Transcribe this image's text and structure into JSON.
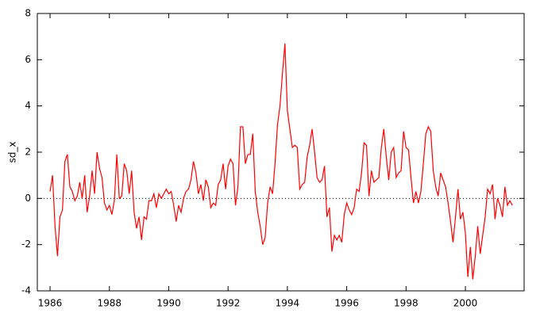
{
  "chart_data": {
    "type": "line",
    "ylabel": "sd_x",
    "x": [
      1986,
      1986.083,
      1986.167,
      1986.25,
      1986.333,
      1986.417,
      1986.5,
      1986.583,
      1986.667,
      1986.75,
      1986.833,
      1986.917,
      1987,
      1987.083,
      1987.167,
      1987.25,
      1987.333,
      1987.417,
      1987.5,
      1987.583,
      1987.667,
      1987.75,
      1987.833,
      1987.917,
      1988,
      1988.083,
      1988.167,
      1988.25,
      1988.333,
      1988.417,
      1988.5,
      1988.583,
      1988.667,
      1988.75,
      1988.833,
      1988.917,
      1989,
      1989.083,
      1989.167,
      1989.25,
      1989.333,
      1989.417,
      1989.5,
      1989.583,
      1989.667,
      1989.75,
      1989.833,
      1989.917,
      1990,
      1990.083,
      1990.167,
      1990.25,
      1990.333,
      1990.417,
      1990.5,
      1990.583,
      1990.667,
      1990.75,
      1990.833,
      1990.917,
      1991,
      1991.083,
      1991.167,
      1991.25,
      1991.333,
      1991.417,
      1991.5,
      1991.583,
      1991.667,
      1991.75,
      1991.833,
      1991.917,
      1992,
      1992.083,
      1992.167,
      1992.25,
      1992.333,
      1992.417,
      1992.5,
      1992.583,
      1992.667,
      1992.75,
      1992.833,
      1992.917,
      1993,
      1993.083,
      1993.167,
      1993.25,
      1993.333,
      1993.417,
      1993.5,
      1993.583,
      1993.667,
      1993.75,
      1993.833,
      1993.917,
      1994,
      1994.083,
      1994.167,
      1994.25,
      1994.333,
      1994.417,
      1994.5,
      1994.583,
      1994.667,
      1994.75,
      1994.833,
      1994.917,
      1995,
      1995.083,
      1995.167,
      1995.25,
      1995.333,
      1995.417,
      1995.5,
      1995.583,
      1995.667,
      1995.75,
      1995.833,
      1995.917,
      1996,
      1996.083,
      1996.167,
      1996.25,
      1996.333,
      1996.417,
      1996.5,
      1996.583,
      1996.667,
      1996.75,
      1996.833,
      1996.917,
      1997,
      1997.083,
      1997.167,
      1997.25,
      1997.333,
      1997.417,
      1997.5,
      1997.583,
      1997.667,
      1997.75,
      1997.833,
      1997.917,
      1998,
      1998.083,
      1998.167,
      1998.25,
      1998.333,
      1998.417,
      1998.5,
      1998.583,
      1998.667,
      1998.75,
      1998.833,
      1998.917,
      1999,
      1999.083,
      1999.167,
      1999.25,
      1999.333,
      1999.417,
      1999.5,
      1999.583,
      1999.667,
      1999.75,
      1999.833,
      1999.917,
      2000,
      2000.083,
      2000.167,
      2000.25,
      2000.333,
      2000.417,
      2000.5,
      2000.583,
      2000.667,
      2000.75,
      2000.833,
      2000.917,
      2001,
      2001.083,
      2001.167,
      2001.25,
      2001.333,
      2001.417,
      2001.5,
      2001.583
    ],
    "series": [
      {
        "name": "sd_x",
        "color": "#ff0000",
        "values": [
          0.3,
          1.0,
          -1.2,
          -2.5,
          -0.8,
          -0.5,
          1.6,
          1.9,
          0.5,
          0.3,
          -0.1,
          0.1,
          0.7,
          0.0,
          1.0,
          -0.6,
          0.1,
          1.2,
          0.2,
          2.0,
          1.3,
          0.9,
          -0.2,
          -0.5,
          -0.3,
          -0.7,
          -0.1,
          1.9,
          0.0,
          0.1,
          1.5,
          1.2,
          0.2,
          1.2,
          -0.6,
          -1.3,
          -0.8,
          -1.8,
          -0.8,
          -0.9,
          -0.1,
          -0.1,
          0.2,
          -0.4,
          0.2,
          0.0,
          0.2,
          0.4,
          0.2,
          0.3,
          -0.3,
          -1.0,
          -0.3,
          -0.6,
          0.0,
          0.3,
          0.4,
          0.8,
          1.6,
          1.1,
          0.2,
          0.6,
          -0.1,
          0.8,
          0.5,
          -0.4,
          -0.2,
          -0.3,
          0.6,
          0.8,
          1.5,
          0.4,
          1.4,
          1.7,
          1.5,
          -0.3,
          0.5,
          3.1,
          3.1,
          1.5,
          1.9,
          1.9,
          2.8,
          0.3,
          -0.6,
          -1.2,
          -2.0,
          -1.7,
          -0.2,
          0.5,
          0.2,
          1.5,
          3.2,
          4.0,
          5.4,
          6.7,
          3.8,
          3.0,
          2.2,
          2.3,
          2.2,
          0.4,
          0.6,
          0.7,
          1.8,
          2.3,
          3.0,
          2.0,
          0.9,
          0.7,
          0.8,
          1.4,
          -0.8,
          -0.4,
          -2.3,
          -1.6,
          -1.8,
          -1.6,
          -1.9,
          -0.7,
          -0.2,
          -0.5,
          -0.7,
          -0.4,
          0.4,
          0.3,
          1.1,
          2.4,
          2.3,
          0.1,
          1.2,
          0.7,
          0.8,
          0.9,
          2.2,
          3.0,
          1.8,
          0.8,
          2.0,
          2.2,
          0.9,
          1.1,
          1.2,
          2.9,
          2.2,
          2.1,
          0.9,
          -0.2,
          0.3,
          -0.2,
          0.3,
          1.5,
          2.8,
          3.1,
          2.9,
          1.2,
          0.5,
          0.1,
          1.1,
          0.8,
          0.5,
          -0.2,
          -1.0,
          -1.9,
          -0.8,
          0.4,
          -0.9,
          -0.6,
          -1.5,
          -3.4,
          -2.1,
          -3.5,
          -2.5,
          -1.2,
          -2.4,
          -1.6,
          -0.8,
          0.4,
          0.2,
          0.6,
          -0.9,
          0.0,
          -0.3,
          -0.8,
          0.5,
          -0.3,
          -0.1,
          -0.3
        ]
      }
    ],
    "xlim": [
      1985.57,
      2001.98
    ],
    "xticks": [
      1986,
      1988,
      1990,
      1992,
      1994,
      1996,
      1998,
      2000
    ],
    "ylim": [
      -4,
      8
    ],
    "yticks": [
      -4,
      -2,
      0,
      2,
      4,
      6,
      8
    ],
    "zero_line": true
  }
}
